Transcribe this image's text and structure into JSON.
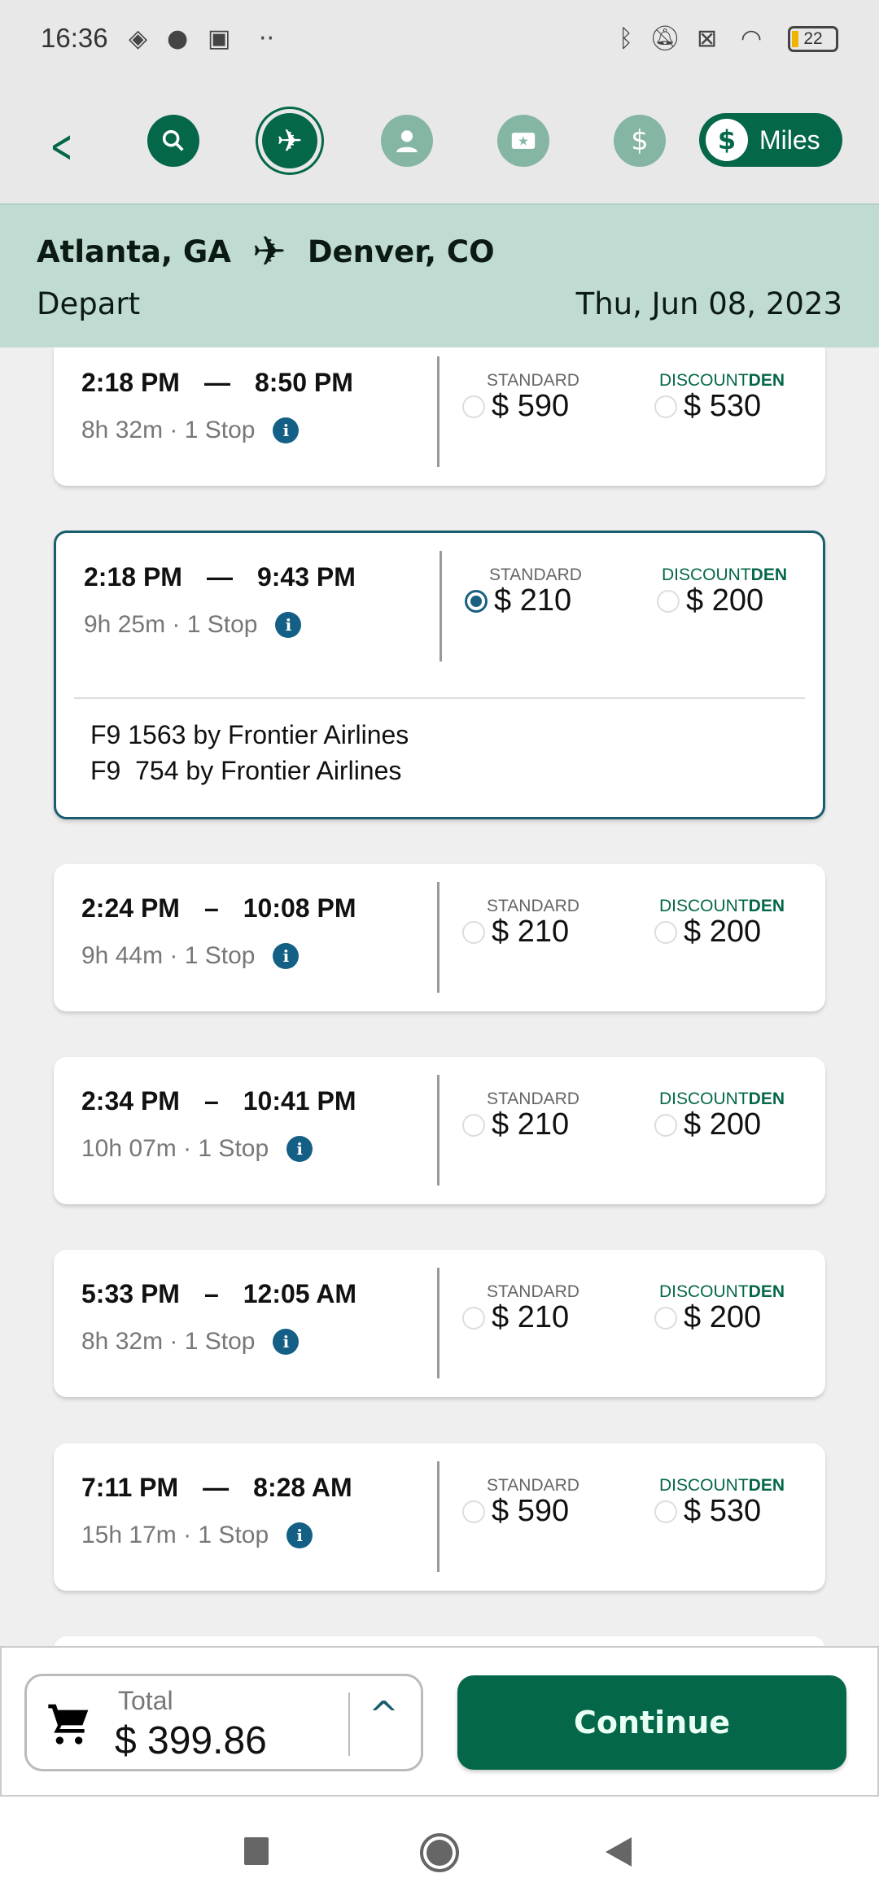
{
  "status_bar": {
    "time": "16:36",
    "battery": "22"
  },
  "nav": {
    "miles_label": "Miles",
    "icons": [
      "back-chevron",
      "search",
      "flight",
      "profile",
      "ticket-star",
      "dollar"
    ]
  },
  "header": {
    "origin": "Atlanta, GA",
    "destination": "Denver, CO",
    "direction": "Depart",
    "date": "Thu, Jun 08, 2023"
  },
  "fare_labels": {
    "standard": "STANDARD",
    "discount_prefix": "DISCOUNT",
    "discount_suffix": "DEN"
  },
  "flights": [
    {
      "depart": "2:18 PM",
      "arrive": "8:50 PM",
      "duration": "8h 32m · 1 Stop",
      "standard": "$ 590",
      "discount": "$ 530",
      "selected": null
    },
    {
      "depart": "2:18 PM",
      "arrive": "9:43 PM",
      "duration": "9h 25m · 1 Stop",
      "standard": "$ 210",
      "discount": "$ 200",
      "selected": "standard",
      "details": [
        "F9 1563 by Frontier Airlines",
        "F9  754 by Frontier Airlines"
      ]
    },
    {
      "depart": "2:24 PM",
      "arrive": "10:08 PM",
      "duration": "9h 44m · 1 Stop",
      "standard": "$ 210",
      "discount": "$ 200",
      "selected": null
    },
    {
      "depart": "2:34 PM",
      "arrive": "10:41 PM",
      "duration": "10h 07m · 1 Stop",
      "standard": "$ 210",
      "discount": "$ 200",
      "selected": null
    },
    {
      "depart": "5:33 PM",
      "arrive": "12:05 AM",
      "duration": "8h 32m · 1 Stop",
      "standard": "$ 210",
      "discount": "$ 200",
      "selected": null
    },
    {
      "depart": "7:11 PM",
      "arrive": "8:28 AM",
      "duration": "15h 17m · 1 Stop",
      "standard": "$ 590",
      "discount": "$ 530",
      "selected": null
    }
  ],
  "footer": {
    "total_label": "Total",
    "total_value": "$ 399.86",
    "continue_label": "Continue"
  },
  "colors": {
    "brand_green": "#05674a",
    "header_bg": "#c0dbd1",
    "selected_border": "#1a5d6e",
    "info": "#145f86"
  }
}
